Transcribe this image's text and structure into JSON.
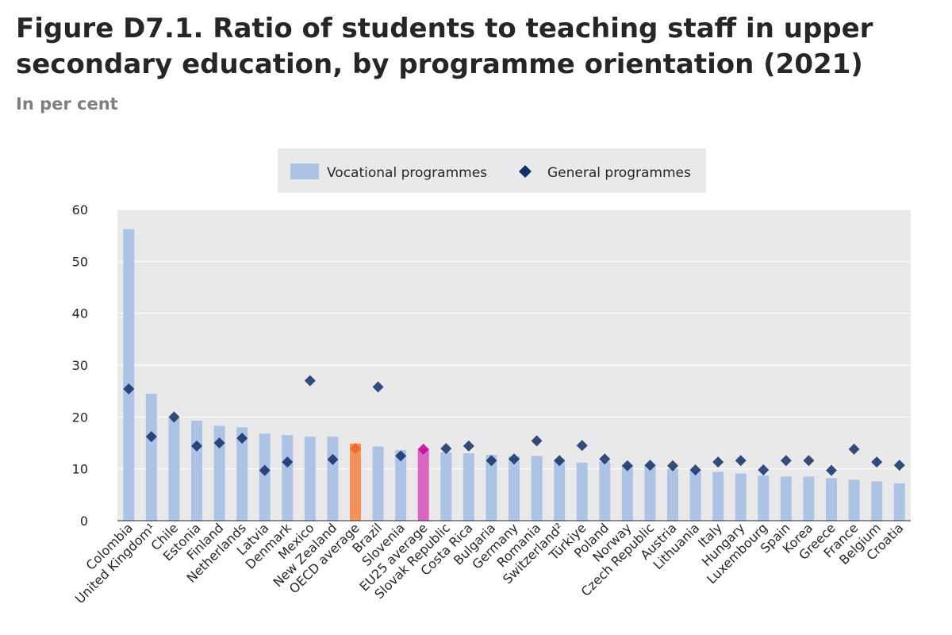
{
  "header": {
    "title": "Figure D7.1. Ratio of students to teaching staff in upper secondary education, by programme orientation (2021)",
    "subtitle": "In per cent"
  },
  "colors": {
    "vocational": "#adc3e5",
    "vocational_oecd": "#f4915a",
    "vocational_eu": "#d966c4",
    "general": "#0f2f6b",
    "general_oecd": "#f26522",
    "general_eu": "#cc0099",
    "plot_bg": "#e9e9e9",
    "legend_bg": "#e9e9e9"
  },
  "chart_data": {
    "type": "bar",
    "title": "Figure D7.1. Ratio of students to teaching staff in upper secondary education, by programme orientation (2021)",
    "subtitle": "In per cent",
    "xlabel": "",
    "ylabel": "",
    "ylim": [
      0,
      60
    ],
    "yticks": [
      0,
      10,
      20,
      30,
      40,
      50,
      60
    ],
    "grid": true,
    "legend_position": "top-center",
    "categories": [
      "Colombia",
      "United Kingdom¹",
      "Chile",
      "Estonia",
      "Finland",
      "Netherlands",
      "Latvia",
      "Denmark",
      "Mexico",
      "New Zealand",
      "OECD average",
      "Brazil",
      "Slovenia",
      "EU25 average",
      "Slovak Republic",
      "Costa Rica",
      "Bulgaria",
      "Germany",
      "Romania",
      "Switzerland²",
      "Türkiye",
      "Poland",
      "Norway",
      "Czech Republic",
      "Austria",
      "Lithuania",
      "Italy",
      "Hungary",
      "Luxembourg",
      "Spain",
      "Korea",
      "Greece",
      "France",
      "Belgium",
      "Croatia"
    ],
    "highlight": {
      "OECD average": "oecd",
      "EU25 average": "eu"
    },
    "series": [
      {
        "name": "Vocational programmes",
        "marker": "bar",
        "values": [
          56.2,
          24.5,
          19.8,
          19.3,
          18.3,
          18.0,
          16.8,
          16.5,
          16.2,
          16.2,
          14.9,
          14.3,
          13.6,
          13.8,
          13.2,
          13.0,
          12.7,
          12.4,
          12.5,
          11.8,
          11.2,
          11.4,
          10.8,
          10.8,
          10.0,
          9.7,
          9.4,
          9.1,
          8.7,
          8.5,
          8.5,
          8.2,
          7.9,
          7.6,
          7.2
        ]
      },
      {
        "name": "General programmes",
        "marker": "diamond",
        "values": [
          25.4,
          16.2,
          20.0,
          14.4,
          15.0,
          15.9,
          9.7,
          11.3,
          27.0,
          11.8,
          13.9,
          25.8,
          12.5,
          13.8,
          13.9,
          14.4,
          11.6,
          11.9,
          15.4,
          11.6,
          14.5,
          11.9,
          10.6,
          10.7,
          10.6,
          9.8,
          11.3,
          11.6,
          9.8,
          11.6,
          11.6,
          9.7,
          13.8,
          11.3,
          10.7
        ]
      }
    ]
  }
}
